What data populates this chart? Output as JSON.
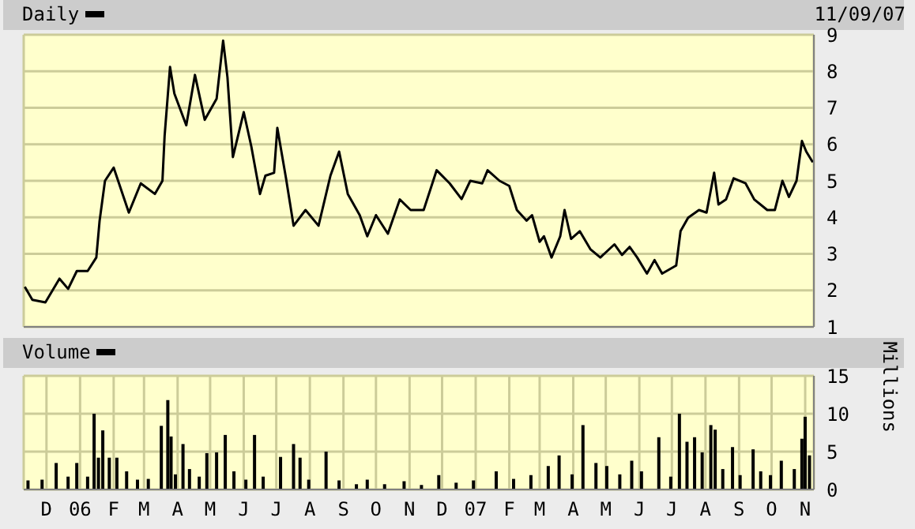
{
  "chart_data": [
    {
      "type": "line",
      "annotations": [
        "11/09/07"
      ],
      "legend": "top left",
      "grid": true,
      "tick_labels": "y",
      "x": [
        "2005-11-11",
        "2005-11-18",
        "2005-11-30",
        "2005-12-13",
        "2005-12-21",
        "2005-12-29",
        "2006-01-08",
        "2006-01-16",
        "2006-01-19",
        "2006-01-24",
        "2006-02-01",
        "2006-02-15",
        "2006-02-26",
        "2006-03-11",
        "2006-03-18",
        "2006-03-20",
        "2006-03-25",
        "2006-03-29",
        "2006-04-09",
        "2006-04-17",
        "2006-04-26",
        "2006-05-07",
        "2006-05-13",
        "2006-05-17",
        "2006-05-22",
        "2006-06-01",
        "2006-06-08",
        "2006-06-16",
        "2006-06-21",
        "2006-06-29",
        "2006-07-02",
        "2006-07-10",
        "2006-07-17",
        "2006-07-28",
        "2006-08-09",
        "2006-08-20",
        "2006-08-28",
        "2006-09-05",
        "2006-09-16",
        "2006-09-23",
        "2006-10-01",
        "2006-10-12",
        "2006-10-23",
        "2006-11-02",
        "2006-11-14",
        "2006-11-26",
        "2006-12-08",
        "2006-12-19",
        "2006-12-27",
        "2007-01-07",
        "2007-01-12",
        "2007-01-23",
        "2007-02-01",
        "2007-02-08",
        "2007-02-17",
        "2007-02-22",
        "2007-03-01",
        "2007-03-05",
        "2007-03-12",
        "2007-03-20",
        "2007-03-24",
        "2007-03-30",
        "2007-04-07",
        "2007-04-17",
        "2007-04-26",
        "2007-05-09",
        "2007-05-16",
        "2007-05-23",
        "2007-05-30",
        "2007-06-08",
        "2007-06-15",
        "2007-06-22",
        "2007-07-05",
        "2007-07-09",
        "2007-07-16",
        "2007-07-26",
        "2007-08-02",
        "2007-08-09",
        "2007-08-13",
        "2007-08-20",
        "2007-08-27",
        "2007-09-07",
        "2007-09-15",
        "2007-09-27",
        "2007-10-04",
        "2007-10-11",
        "2007-10-17",
        "2007-10-24",
        "2007-10-29",
        "2007-11-02",
        "2007-11-08"
      ],
      "series": [
        {
          "name": "Daily",
          "color": "#000000",
          "values": [
            2.1,
            1.74,
            1.67,
            2.32,
            2.04,
            2.53,
            2.53,
            2.9,
            3.9,
            5.0,
            5.36,
            4.13,
            4.93,
            4.64,
            5.0,
            6.23,
            8.12,
            7.39,
            6.52,
            7.9,
            6.67,
            7.25,
            8.84,
            7.83,
            5.65,
            6.88,
            5.94,
            4.64,
            5.14,
            5.22,
            6.45,
            5.07,
            3.77,
            4.2,
            3.77,
            5.14,
            5.8,
            4.64,
            4.06,
            3.48,
            4.06,
            3.55,
            4.49,
            4.2,
            4.2,
            5.29,
            4.93,
            4.5,
            5.0,
            4.93,
            5.29,
            5.0,
            4.86,
            4.2,
            3.91,
            4.06,
            3.33,
            3.48,
            2.9,
            3.48,
            4.2,
            3.41,
            3.62,
            3.12,
            2.9,
            3.26,
            2.97,
            3.19,
            2.9,
            2.46,
            2.83,
            2.46,
            2.68,
            3.62,
            3.99,
            4.2,
            4.13,
            5.22,
            4.35,
            4.49,
            5.07,
            4.93,
            4.49,
            4.2,
            4.2,
            5.0,
            4.56,
            5.0,
            6.09,
            5.8,
            5.51
          ]
        }
      ],
      "xlim": [
        "2005-11-10",
        "2007-11-09"
      ],
      "xticks": [
        {
          "value": "2005-12-01",
          "label": null
        },
        {
          "value": "2006-01-01",
          "label": null
        },
        {
          "value": "2006-02-01",
          "label": null
        },
        {
          "value": "2006-03-01",
          "label": null
        },
        {
          "value": "2006-04-01",
          "label": null
        },
        {
          "value": "2006-05-01",
          "label": null
        },
        {
          "value": "2006-06-01",
          "label": null
        },
        {
          "value": "2006-07-01",
          "label": null
        },
        {
          "value": "2006-08-01",
          "label": null
        },
        {
          "value": "2006-09-01",
          "label": null
        },
        {
          "value": "2006-10-01",
          "label": null
        },
        {
          "value": "2006-11-01",
          "label": null
        },
        {
          "value": "2006-12-01",
          "label": null
        },
        {
          "value": "2007-01-01",
          "label": null
        },
        {
          "value": "2007-02-01",
          "label": null
        },
        {
          "value": "2007-03-01",
          "label": null
        },
        {
          "value": "2007-04-01",
          "label": null
        },
        {
          "value": "2007-05-01",
          "label": null
        },
        {
          "value": "2007-06-01",
          "label": null
        },
        {
          "value": "2007-07-01",
          "label": null
        },
        {
          "value": "2007-08-01",
          "label": null
        },
        {
          "value": "2007-09-01",
          "label": null
        },
        {
          "value": "2007-10-01",
          "label": null
        },
        {
          "value": "2007-11-01",
          "label": null
        }
      ],
      "ylim": [
        1,
        9
      ],
      "yticks": [
        1,
        2,
        3,
        4,
        5,
        6,
        7,
        8,
        9
      ]
    },
    {
      "type": "bar",
      "ylabel": "Millions",
      "legend": "top left",
      "grid": true,
      "x": [
        "2005-11-14",
        "2005-11-27",
        "2005-12-10",
        "2005-12-21",
        "2005-12-29",
        "2006-01-08",
        "2006-01-14",
        "2006-01-18",
        "2006-01-22",
        "2006-01-28",
        "2006-02-04",
        "2006-02-13",
        "2006-02-23",
        "2006-03-05",
        "2006-03-17",
        "2006-03-23",
        "2006-03-26",
        "2006-03-30",
        "2006-04-06",
        "2006-04-12",
        "2006-04-21",
        "2006-04-28",
        "2006-05-07",
        "2006-05-15",
        "2006-05-23",
        "2006-06-03",
        "2006-06-11",
        "2006-06-19",
        "2006-07-05",
        "2006-07-17",
        "2006-07-23",
        "2006-07-31",
        "2006-08-16",
        "2006-08-28",
        "2006-09-13",
        "2006-09-23",
        "2006-10-09",
        "2006-10-27",
        "2006-11-12",
        "2006-11-28",
        "2006-12-14",
        "2006-12-30",
        "2007-01-20",
        "2007-02-05",
        "2007-02-21",
        "2007-03-09",
        "2007-03-19",
        "2007-03-31",
        "2007-04-10",
        "2007-04-22",
        "2007-05-02",
        "2007-05-14",
        "2007-05-25",
        "2007-06-03",
        "2007-06-19",
        "2007-06-30",
        "2007-07-08",
        "2007-07-15",
        "2007-07-22",
        "2007-07-29",
        "2007-08-06",
        "2007-08-10",
        "2007-08-17",
        "2007-08-26",
        "2007-09-02",
        "2007-09-14",
        "2007-09-21",
        "2007-09-30",
        "2007-10-10",
        "2007-10-22",
        "2007-10-29",
        "2007-11-01",
        "2007-11-05"
      ],
      "series": [
        {
          "name": "Volume",
          "color": "#000000",
          "values": [
            1.2,
            1.3,
            3.5,
            1.7,
            3.5,
            1.7,
            10,
            4.2,
            7.8,
            4.2,
            4.2,
            2.4,
            1.3,
            1.4,
            8.4,
            11.8,
            7,
            2,
            6,
            2.7,
            1.7,
            4.8,
            4.9,
            7.2,
            2.4,
            1.3,
            7.2,
            1.7,
            4.3,
            6,
            4.2,
            1.3,
            5,
            1.2,
            0.7,
            1.3,
            0.7,
            1.1,
            0.6,
            1.9,
            0.9,
            1.2,
            2.4,
            1.4,
            1.9,
            3.1,
            4.5,
            2,
            8.5,
            3.5,
            3.1,
            2,
            3.8,
            2.4,
            6.9,
            1.7,
            10,
            6.3,
            6.9,
            4.9,
            8.5,
            7.9,
            2.7,
            5.6,
            1.9,
            5.3,
            2.4,
            1.9,
            3.8,
            2.7,
            6.7,
            9.6,
            4.5
          ]
        }
      ],
      "xlim": [
        "2005-11-10",
        "2007-11-09"
      ],
      "xticks": [
        {
          "value": "2005-12-01",
          "label": "D"
        },
        {
          "value": "2006-01-01",
          "label": "06"
        },
        {
          "value": "2006-02-01",
          "label": "F"
        },
        {
          "value": "2006-03-01",
          "label": "M"
        },
        {
          "value": "2006-04-01",
          "label": "A"
        },
        {
          "value": "2006-05-01",
          "label": "M"
        },
        {
          "value": "2006-06-01",
          "label": "J"
        },
        {
          "value": "2006-07-01",
          "label": "J"
        },
        {
          "value": "2006-08-01",
          "label": "A"
        },
        {
          "value": "2006-09-01",
          "label": "S"
        },
        {
          "value": "2006-10-01",
          "label": "O"
        },
        {
          "value": "2006-11-01",
          "label": "N"
        },
        {
          "value": "2006-12-01",
          "label": "D"
        },
        {
          "value": "2007-01-01",
          "label": "07"
        },
        {
          "value": "2007-02-01",
          "label": "F"
        },
        {
          "value": "2007-03-01",
          "label": "M"
        },
        {
          "value": "2007-04-01",
          "label": "A"
        },
        {
          "value": "2007-05-01",
          "label": "M"
        },
        {
          "value": "2007-06-01",
          "label": "J"
        },
        {
          "value": "2007-07-01",
          "label": "J"
        },
        {
          "value": "2007-08-01",
          "label": "A"
        },
        {
          "value": "2007-09-01",
          "label": "S"
        },
        {
          "value": "2007-10-01",
          "label": "O"
        },
        {
          "value": "2007-11-01",
          "label": "N"
        }
      ],
      "ylim": [
        0,
        15
      ],
      "yticks": [
        0,
        5,
        10,
        15
      ]
    }
  ]
}
